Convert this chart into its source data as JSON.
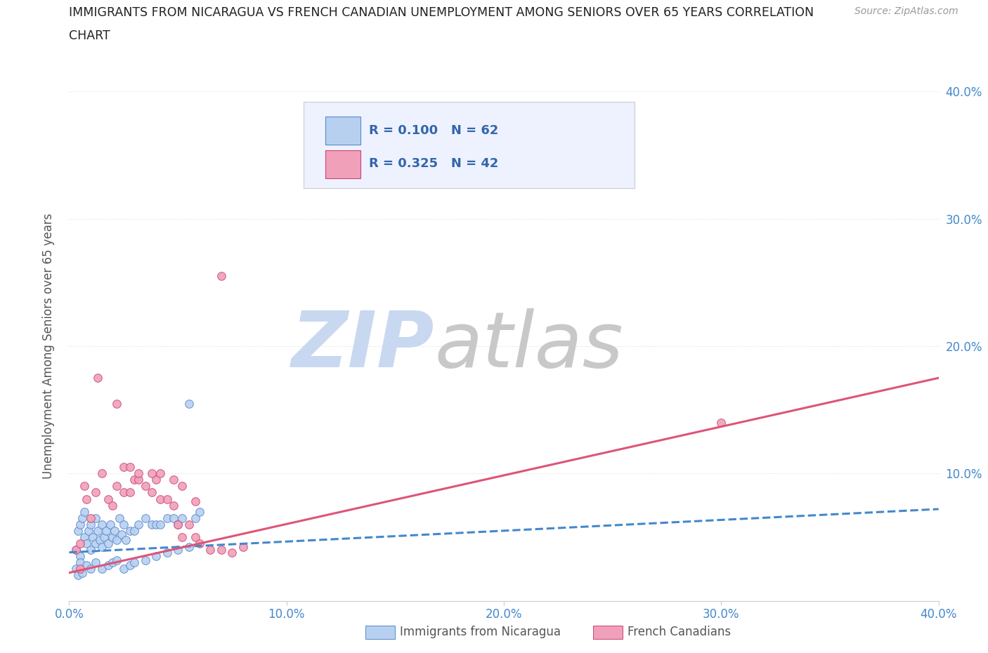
{
  "title_line1": "IMMIGRANTS FROM NICARAGUA VS FRENCH CANADIAN UNEMPLOYMENT AMONG SENIORS OVER 65 YEARS CORRELATION",
  "title_line2": "CHART",
  "source_text": "Source: ZipAtlas.com",
  "ylabel": "Unemployment Among Seniors over 65 years",
  "xlim": [
    0.0,
    0.4
  ],
  "ylim": [
    0.0,
    0.4
  ],
  "xticks": [
    0.0,
    0.1,
    0.2,
    0.3,
    0.4
  ],
  "yticks": [
    0.1,
    0.2,
    0.3,
    0.4
  ],
  "xticklabels": [
    "0.0%",
    "10.0%",
    "20.0%",
    "30.0%",
    "40.0%"
  ],
  "yticklabels_right": [
    "10.0%",
    "20.0%",
    "30.0%",
    "40.0%"
  ],
  "scatter_blue": {
    "color": "#b8d0f0",
    "edge_color": "#5588cc",
    "x": [
      0.003,
      0.004,
      0.005,
      0.005,
      0.006,
      0.007,
      0.007,
      0.008,
      0.009,
      0.01,
      0.01,
      0.011,
      0.012,
      0.012,
      0.013,
      0.014,
      0.015,
      0.015,
      0.016,
      0.017,
      0.018,
      0.019,
      0.02,
      0.021,
      0.022,
      0.023,
      0.024,
      0.025,
      0.026,
      0.028,
      0.03,
      0.032,
      0.035,
      0.038,
      0.04,
      0.042,
      0.045,
      0.048,
      0.05,
      0.052,
      0.055,
      0.058,
      0.06,
      0.003,
      0.004,
      0.005,
      0.006,
      0.008,
      0.01,
      0.012,
      0.015,
      0.018,
      0.02,
      0.022,
      0.025,
      0.028,
      0.03,
      0.035,
      0.04,
      0.045,
      0.05,
      0.055
    ],
    "y": [
      0.04,
      0.055,
      0.06,
      0.035,
      0.065,
      0.05,
      0.07,
      0.045,
      0.055,
      0.06,
      0.04,
      0.05,
      0.045,
      0.065,
      0.055,
      0.048,
      0.06,
      0.042,
      0.05,
      0.055,
      0.045,
      0.06,
      0.05,
      0.055,
      0.048,
      0.065,
      0.052,
      0.06,
      0.048,
      0.055,
      0.055,
      0.06,
      0.065,
      0.06,
      0.06,
      0.06,
      0.065,
      0.065,
      0.06,
      0.065,
      0.155,
      0.065,
      0.07,
      0.025,
      0.02,
      0.03,
      0.022,
      0.028,
      0.025,
      0.03,
      0.025,
      0.028,
      0.03,
      0.032,
      0.025,
      0.028,
      0.03,
      0.032,
      0.035,
      0.038,
      0.04,
      0.042
    ]
  },
  "scatter_pink": {
    "color": "#f0a0b8",
    "edge_color": "#cc4477",
    "x": [
      0.003,
      0.005,
      0.007,
      0.008,
      0.01,
      0.012,
      0.015,
      0.018,
      0.02,
      0.022,
      0.025,
      0.028,
      0.03,
      0.032,
      0.035,
      0.038,
      0.04,
      0.042,
      0.045,
      0.048,
      0.05,
      0.052,
      0.055,
      0.058,
      0.06,
      0.065,
      0.07,
      0.075,
      0.08,
      0.07,
      0.013,
      0.022,
      0.025,
      0.028,
      0.032,
      0.038,
      0.042,
      0.048,
      0.052,
      0.058,
      0.3,
      0.005
    ],
    "y": [
      0.04,
      0.045,
      0.09,
      0.08,
      0.065,
      0.085,
      0.1,
      0.08,
      0.075,
      0.09,
      0.085,
      0.085,
      0.095,
      0.095,
      0.09,
      0.085,
      0.095,
      0.08,
      0.08,
      0.075,
      0.06,
      0.05,
      0.06,
      0.05,
      0.045,
      0.04,
      0.04,
      0.038,
      0.042,
      0.255,
      0.175,
      0.155,
      0.105,
      0.105,
      0.1,
      0.1,
      0.1,
      0.095,
      0.09,
      0.078,
      0.14,
      0.025
    ]
  },
  "trend_blue": {
    "x_start": 0.0,
    "x_end": 0.4,
    "y_start": 0.038,
    "y_end": 0.072,
    "color": "#4488cc",
    "linestyle": "dashed"
  },
  "trend_pink": {
    "x_start": 0.0,
    "x_end": 0.4,
    "y_start": 0.022,
    "y_end": 0.175,
    "color": "#dd5577",
    "linestyle": "solid"
  },
  "watermark_zip_color": "#c8d8f0",
  "watermark_atlas_color": "#c8c8c8",
  "background_color": "#ffffff",
  "grid_color": "#dddddd",
  "title_color": "#222222",
  "axis_label_color": "#555555",
  "tick_color": "#4488cc",
  "legend_box_color": "#eef2ff"
}
